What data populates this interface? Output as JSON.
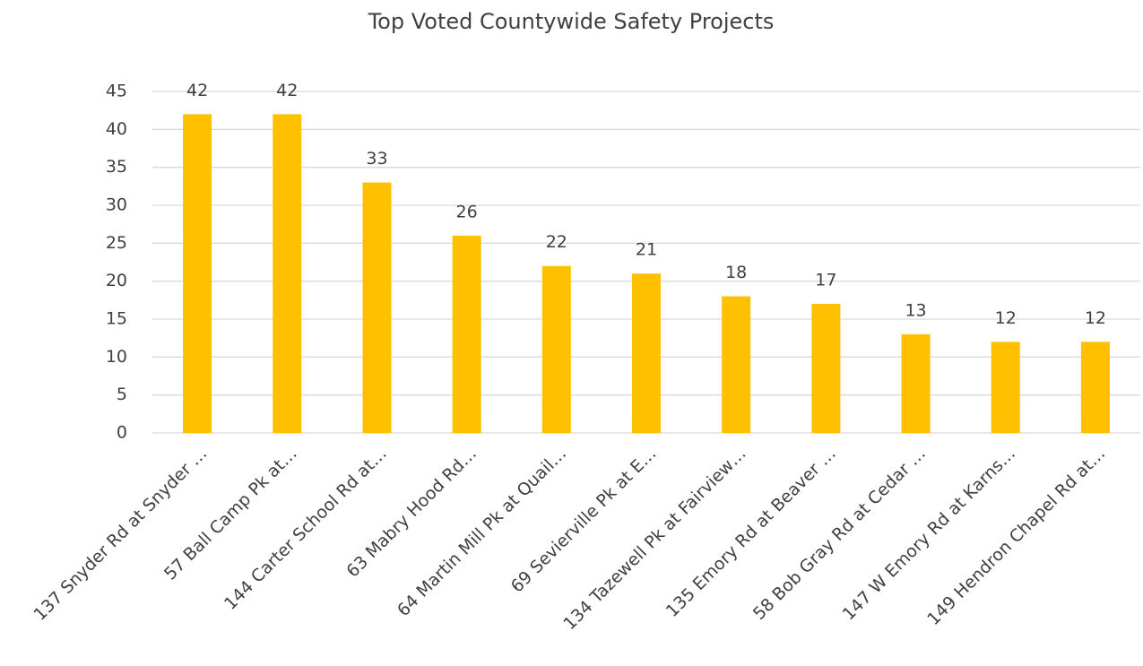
{
  "chart_data": {
    "type": "bar",
    "title": "Top Voted Countywide Safety Projects",
    "categories": [
      "137 Snyder Rd at Snyder …",
      "57 Ball Camp Pk at…",
      "144 Carter School Rd at…",
      "63 Mabry Hood Rd…",
      "64 Martin Mill Pk at Quail…",
      "69 Sevierville Pk at E…",
      "134 Tazewell Pk at Fairview…",
      "135 Emory Rd at Beaver …",
      "58 Bob Gray Rd at Cedar …",
      "147 W Emory Rd at Karns…",
      "149 Hendron Chapel Rd at…"
    ],
    "values": [
      42,
      42,
      33,
      26,
      22,
      21,
      18,
      17,
      13,
      12,
      12
    ],
    "color": "#ffc000",
    "ylim": [
      0,
      45
    ],
    "yticks": [
      0,
      5,
      10,
      15,
      20,
      25,
      30,
      35,
      40,
      45
    ],
    "grid": true
  }
}
